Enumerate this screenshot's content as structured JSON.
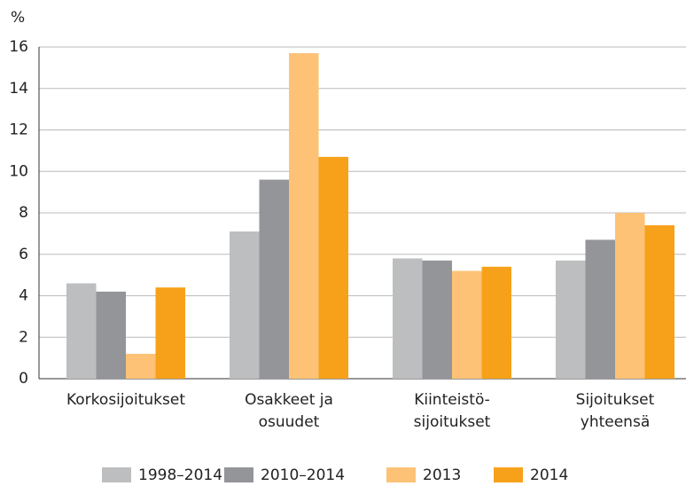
{
  "chart_data": {
    "type": "bar",
    "y_label": "%",
    "categories": [
      "Korkosijoitukset",
      "Osakkeet ja\nosuudet",
      "Kiinteistö-\nsijoitukset",
      "Sijoitukset\nyhteensä"
    ],
    "series": [
      {
        "name": "1998–2014",
        "color": "#bcbec0",
        "values": [
          4.6,
          7.1,
          5.8,
          5.7
        ]
      },
      {
        "name": "2010–2014",
        "color": "#939598",
        "values": [
          4.2,
          9.6,
          5.7,
          6.7
        ]
      },
      {
        "name": "2013",
        "color": "#fdc276",
        "values": [
          1.2,
          15.7,
          5.2,
          8.0
        ]
      },
      {
        "name": "2014",
        "color": "#f7a11a",
        "values": [
          4.4,
          10.7,
          5.4,
          7.4
        ]
      }
    ],
    "ylim": [
      0,
      16
    ],
    "yticks": [
      0,
      2,
      4,
      6,
      8,
      10,
      12,
      14,
      16
    ],
    "grid": true,
    "legend": "bottom"
  }
}
